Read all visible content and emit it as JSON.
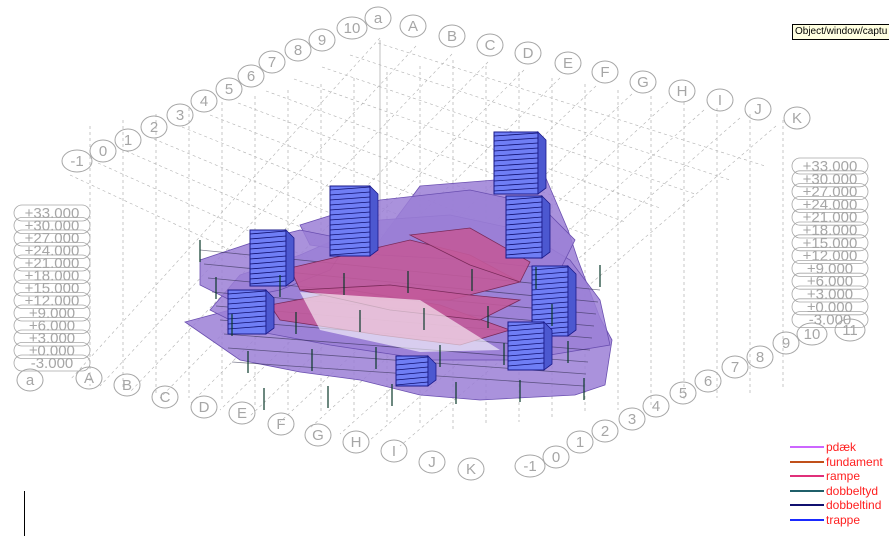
{
  "tooltip": "Object/window/captu",
  "grid_letters": [
    "A",
    "B",
    "C",
    "D",
    "E",
    "F",
    "G",
    "H",
    "I",
    "J",
    "K"
  ],
  "grid_numbers": [
    "a",
    "10",
    "9",
    "8",
    "7",
    "6",
    "5",
    "4",
    "3",
    "2",
    "1",
    "0",
    "-1"
  ],
  "left_letters": [
    "a",
    "A",
    "B",
    "C",
    "D",
    "E",
    "F",
    "G",
    "H",
    "I",
    "J",
    "K"
  ],
  "bottom_numbers": [
    "-1",
    "0",
    "1",
    "2",
    "3",
    "4",
    "5",
    "6",
    "7",
    "8",
    "9",
    "10",
    "11"
  ],
  "elevations": [
    "+33.000",
    "+30.000",
    "+27.000",
    "+24.000",
    "+21.000",
    "+18.000",
    "+15.000",
    "+12.000",
    "+9.000",
    "+6.000",
    "+3.000",
    "±0.000",
    "-3.000"
  ],
  "legend": [
    {
      "label": "pdæk",
      "color": "#cc66ff"
    },
    {
      "label": "fundament",
      "color": "#c0501a"
    },
    {
      "label": "rampe",
      "color": "#e0307a"
    },
    {
      "label": "dobbeltyd",
      "color": "#1f5f6a"
    },
    {
      "label": "dobbeltind",
      "color": "#101070"
    },
    {
      "label": "trappe",
      "color": "#1a2aff"
    }
  ],
  "colors": {
    "slab": "#9b7fd6",
    "ramp": "#c25a9a",
    "stair": "#6f7ef5",
    "bubble": "#a6a6a6",
    "grid": "#b0b0b0"
  }
}
